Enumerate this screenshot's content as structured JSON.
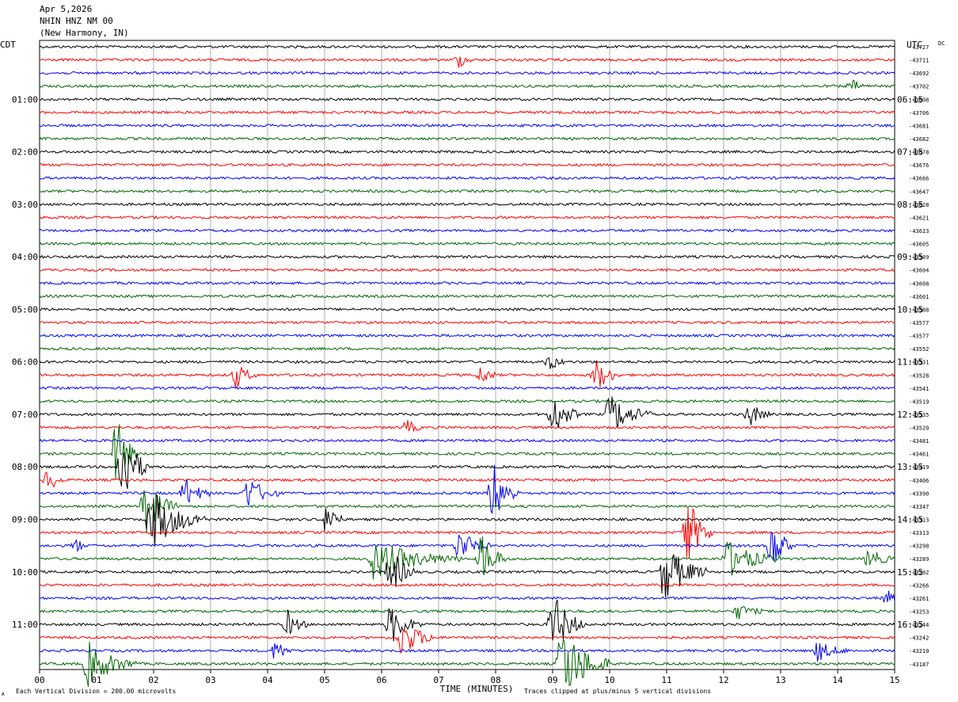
{
  "header": {
    "date": "Apr 5,2026",
    "station": "NHIN HNZ NM 00",
    "location": "(New Harmony, IN)"
  },
  "left_axis_label": "CDT",
  "right_axis_label": "UTC",
  "dc_label": "DC",
  "footer": {
    "scale": "Each Vertical Division =  200.00 microvolts",
    "clip": "Traces clipped at plus/minus 5 vertical divisions",
    "mark": "A"
  },
  "chart_data": {
    "type": "line",
    "title": "",
    "xlabel": "TIME (MINUTES)",
    "x_ticks": [
      "00",
      "01",
      "02",
      "03",
      "04",
      "05",
      "06",
      "07",
      "08",
      "09",
      "10",
      "11",
      "12",
      "13",
      "14",
      "15"
    ],
    "xlim": [
      0,
      15
    ],
    "left_time_labels": [
      "01:00",
      "02:00",
      "03:00",
      "04:00",
      "05:00",
      "06:00",
      "07:00",
      "08:00",
      "09:00",
      "10:00",
      "11:00"
    ],
    "right_time_labels": [
      "06:15",
      "07:15",
      "08:15",
      "09:15",
      "10:15",
      "11:15",
      "12:15",
      "13:15",
      "14:15",
      "15:15",
      "16:15"
    ],
    "trace_colors": [
      "#000000",
      "#ff0000",
      "#0000ff",
      "#006600"
    ],
    "dc_offsets": [
      "-43727",
      "-43711",
      "-43692",
      "-43702",
      "-43698",
      "-43706",
      "-43681",
      "-43682",
      "-43678",
      "-43676",
      "-43666",
      "-43647",
      "-43628",
      "-43621",
      "-43623",
      "-43605",
      "-43589",
      "-43604",
      "-43608",
      "-43601",
      "-43588",
      "-43577",
      "-43577",
      "-43552",
      "-43531",
      "-43528",
      "-43541",
      "-43519",
      "-43535",
      "-43520",
      "-43481",
      "-43461",
      "-43419",
      "-43406",
      "-43390",
      "-43347",
      "-43313",
      "-43313",
      "-43298",
      "-43289",
      "-43292",
      "-43266",
      "-43261",
      "-43253",
      "-43244",
      "-43242",
      "-43210",
      "-43187"
    ],
    "events": [
      {
        "trace": 1,
        "minute": 7.3,
        "amp": 0.6,
        "dur": 0.3
      },
      {
        "trace": 3,
        "minute": 14.2,
        "amp": 0.5,
        "dur": 0.3
      },
      {
        "trace": 25,
        "minute": 3.4,
        "amp": 1.0,
        "dur": 0.4
      },
      {
        "trace": 25,
        "minute": 7.7,
        "amp": 0.8,
        "dur": 0.3
      },
      {
        "trace": 25,
        "minute": 9.7,
        "amp": 1.3,
        "dur": 0.5
      },
      {
        "trace": 24,
        "minute": 8.9,
        "amp": 0.7,
        "dur": 0.3
      },
      {
        "trace": 28,
        "minute": 8.95,
        "amp": 1.8,
        "dur": 0.5
      },
      {
        "trace": 28,
        "minute": 9.95,
        "amp": 1.6,
        "dur": 0.8
      },
      {
        "trace": 28,
        "minute": 12.4,
        "amp": 1.0,
        "dur": 0.4
      },
      {
        "trace": 29,
        "minute": 6.4,
        "amp": 0.6,
        "dur": 0.3
      },
      {
        "trace": 31,
        "minute": 1.3,
        "amp": 3.0,
        "dur": 0.4
      },
      {
        "trace": 32,
        "minute": 1.4,
        "amp": 3.5,
        "dur": 0.5
      },
      {
        "trace": 33,
        "minute": 0.1,
        "amp": 1.0,
        "dur": 0.3
      },
      {
        "trace": 34,
        "minute": 2.5,
        "amp": 1.2,
        "dur": 0.5
      },
      {
        "trace": 34,
        "minute": 3.6,
        "amp": 1.3,
        "dur": 0.6
      },
      {
        "trace": 34,
        "minute": 7.9,
        "amp": 2.6,
        "dur": 0.5
      },
      {
        "trace": 35,
        "minute": 1.8,
        "amp": 2.2,
        "dur": 0.6
      },
      {
        "trace": 36,
        "minute": 1.9,
        "amp": 2.5,
        "dur": 1.0
      },
      {
        "trace": 36,
        "minute": 5.0,
        "amp": 1.6,
        "dur": 0.3
      },
      {
        "trace": 37,
        "minute": 11.3,
        "amp": 3.0,
        "dur": 0.5
      },
      {
        "trace": 38,
        "minute": 7.3,
        "amp": 1.3,
        "dur": 0.6
      },
      {
        "trace": 38,
        "minute": 12.8,
        "amp": 2.3,
        "dur": 0.4
      },
      {
        "trace": 38,
        "minute": 0.6,
        "amp": 0.6,
        "dur": 0.2
      },
      {
        "trace": 39,
        "minute": 5.8,
        "amp": 1.5,
        "dur": 1.6
      },
      {
        "trace": 39,
        "minute": 7.7,
        "amp": 2.0,
        "dur": 0.5
      },
      {
        "trace": 39,
        "minute": 12.0,
        "amp": 1.5,
        "dur": 1.0
      },
      {
        "trace": 39,
        "minute": 14.5,
        "amp": 0.8,
        "dur": 0.5
      },
      {
        "trace": 40,
        "minute": 6.1,
        "amp": 2.0,
        "dur": 0.5
      },
      {
        "trace": 40,
        "minute": 10.9,
        "amp": 2.4,
        "dur": 0.8
      },
      {
        "trace": 42,
        "minute": 14.8,
        "amp": 0.7,
        "dur": 0.3
      },
      {
        "trace": 43,
        "minute": 12.2,
        "amp": 0.6,
        "dur": 0.5
      },
      {
        "trace": 44,
        "minute": 4.3,
        "amp": 1.0,
        "dur": 0.4
      },
      {
        "trace": 44,
        "minute": 6.1,
        "amp": 1.6,
        "dur": 0.6
      },
      {
        "trace": 44,
        "minute": 8.95,
        "amp": 2.6,
        "dur": 0.6
      },
      {
        "trace": 45,
        "minute": 6.3,
        "amp": 1.5,
        "dur": 0.7
      },
      {
        "trace": 46,
        "minute": 4.1,
        "amp": 1.0,
        "dur": 0.3
      },
      {
        "trace": 46,
        "minute": 13.6,
        "amp": 0.8,
        "dur": 0.6
      },
      {
        "trace": 47,
        "minute": 0.8,
        "amp": 1.8,
        "dur": 0.9
      },
      {
        "trace": 47,
        "minute": 9.1,
        "amp": 3.2,
        "dur": 0.9
      }
    ]
  }
}
